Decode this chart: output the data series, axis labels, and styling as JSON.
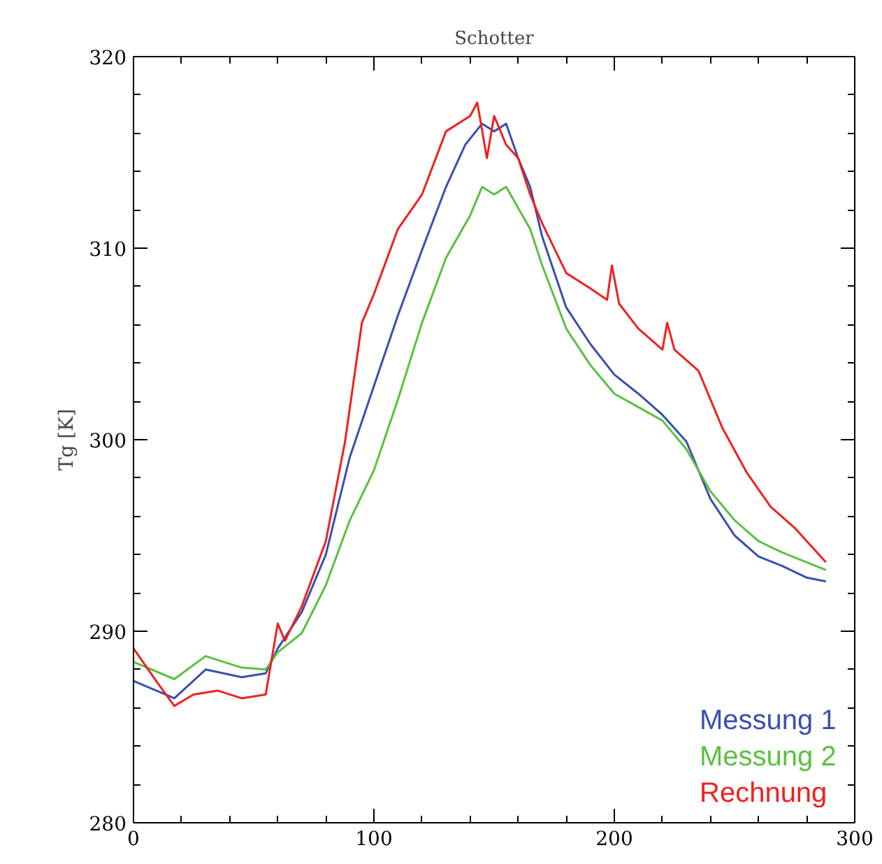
{
  "chart_data": {
    "type": "line",
    "title": "Schotter",
    "ylabel": "Tg [K]",
    "xlim": [
      0,
      300
    ],
    "ylim": [
      280,
      320
    ],
    "xticks": [
      0,
      100,
      200,
      300
    ],
    "yticks": [
      280,
      290,
      300,
      310,
      320
    ],
    "grid": false,
    "legend": "bottom right",
    "line_style": "solid",
    "marker": "none",
    "series": [
      {
        "name": "Messung 1",
        "color": "#3a4fb0",
        "x": [
          0,
          17,
          30,
          45,
          55,
          60,
          70,
          80,
          90,
          100,
          110,
          120,
          130,
          138,
          145,
          150,
          155,
          160,
          165,
          170,
          180,
          190,
          200,
          210,
          220,
          230,
          240,
          250,
          260,
          270,
          280,
          288
        ],
        "values": [
          287.4,
          286.5,
          288.0,
          287.6,
          287.8,
          289.1,
          291.0,
          294.0,
          299.1,
          302.8,
          306.5,
          309.9,
          313.2,
          315.4,
          316.5,
          316.1,
          316.5,
          314.7,
          313.2,
          310.6,
          306.9,
          305.0,
          303.4,
          302.4,
          301.3,
          299.9,
          296.9,
          295.0,
          293.9,
          293.4,
          292.8,
          292.6
        ]
      },
      {
        "name": "Messung 2",
        "color": "#5cc040",
        "x": [
          0,
          17,
          30,
          45,
          55,
          60,
          70,
          80,
          90,
          100,
          110,
          120,
          130,
          140,
          145,
          150,
          155,
          160,
          165,
          170,
          180,
          190,
          200,
          210,
          220,
          230,
          240,
          250,
          260,
          270,
          280,
          288
        ],
        "values": [
          288.4,
          287.5,
          288.7,
          288.1,
          288.0,
          288.9,
          289.9,
          292.4,
          295.8,
          298.4,
          302.1,
          306.1,
          309.5,
          311.7,
          313.2,
          312.8,
          313.2,
          312.1,
          311.0,
          309.1,
          305.8,
          303.9,
          302.4,
          301.7,
          301.0,
          299.5,
          297.3,
          295.8,
          294.7,
          294.1,
          293.6,
          293.2
        ]
      },
      {
        "name": "Rechnung",
        "color": "#f02020",
        "x": [
          0,
          10,
          17,
          25,
          35,
          45,
          55,
          60,
          63,
          70,
          80,
          88,
          95,
          100,
          110,
          120,
          130,
          140,
          143,
          147,
          150,
          155,
          160,
          165,
          170,
          180,
          190,
          197,
          199,
          202,
          210,
          220,
          222,
          225,
          235,
          245,
          255,
          265,
          275,
          288
        ],
        "values": [
          289.1,
          287.3,
          286.1,
          286.7,
          286.9,
          286.5,
          286.7,
          290.4,
          289.5,
          291.3,
          294.7,
          299.9,
          306.1,
          307.6,
          311.0,
          312.8,
          316.1,
          316.9,
          317.6,
          314.7,
          316.9,
          315.4,
          314.7,
          312.8,
          311.3,
          308.7,
          307.9,
          307.3,
          309.1,
          307.1,
          305.8,
          304.7,
          306.1,
          304.7,
          303.6,
          300.6,
          298.3,
          296.5,
          295.4,
          293.6
        ]
      }
    ]
  }
}
